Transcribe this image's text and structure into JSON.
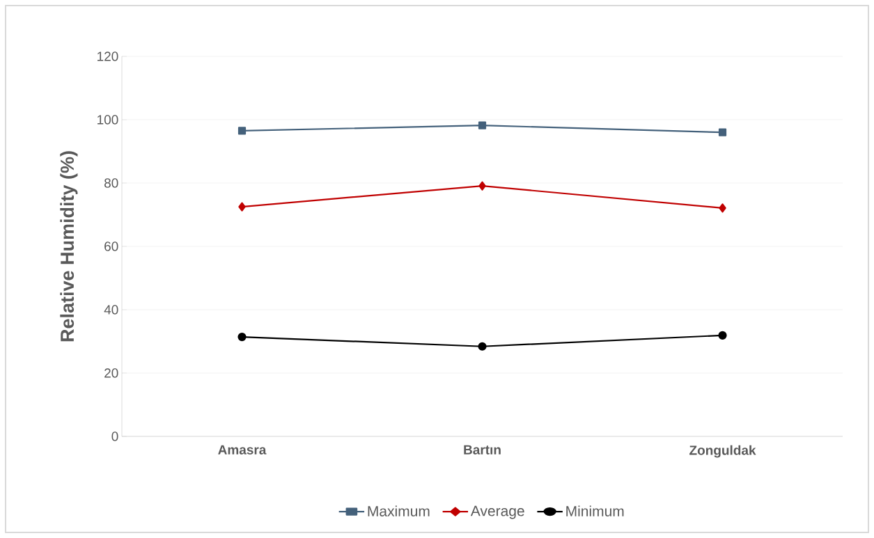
{
  "chart_data": {
    "type": "line",
    "ylabel": "Relative Humidity (%)",
    "categories": [
      "Amasra",
      "Bartın",
      "Zonguldak"
    ],
    "series": [
      {
        "name": "Maximum",
        "color": "#44617b",
        "marker": "square",
        "values": [
          96.5,
          98.2,
          96.0
        ]
      },
      {
        "name": "Average",
        "color": "#c00000",
        "marker": "diamond",
        "values": [
          72.5,
          79.1,
          72.1
        ]
      },
      {
        "name": "Minimum",
        "color": "#000000",
        "marker": "circle",
        "values": [
          31.4,
          28.4,
          31.9
        ]
      }
    ],
    "ylim": [
      0,
      120
    ],
    "yticks": [
      0,
      20,
      40,
      60,
      80,
      100,
      120
    ],
    "grid": "y",
    "legend": "bottom"
  }
}
